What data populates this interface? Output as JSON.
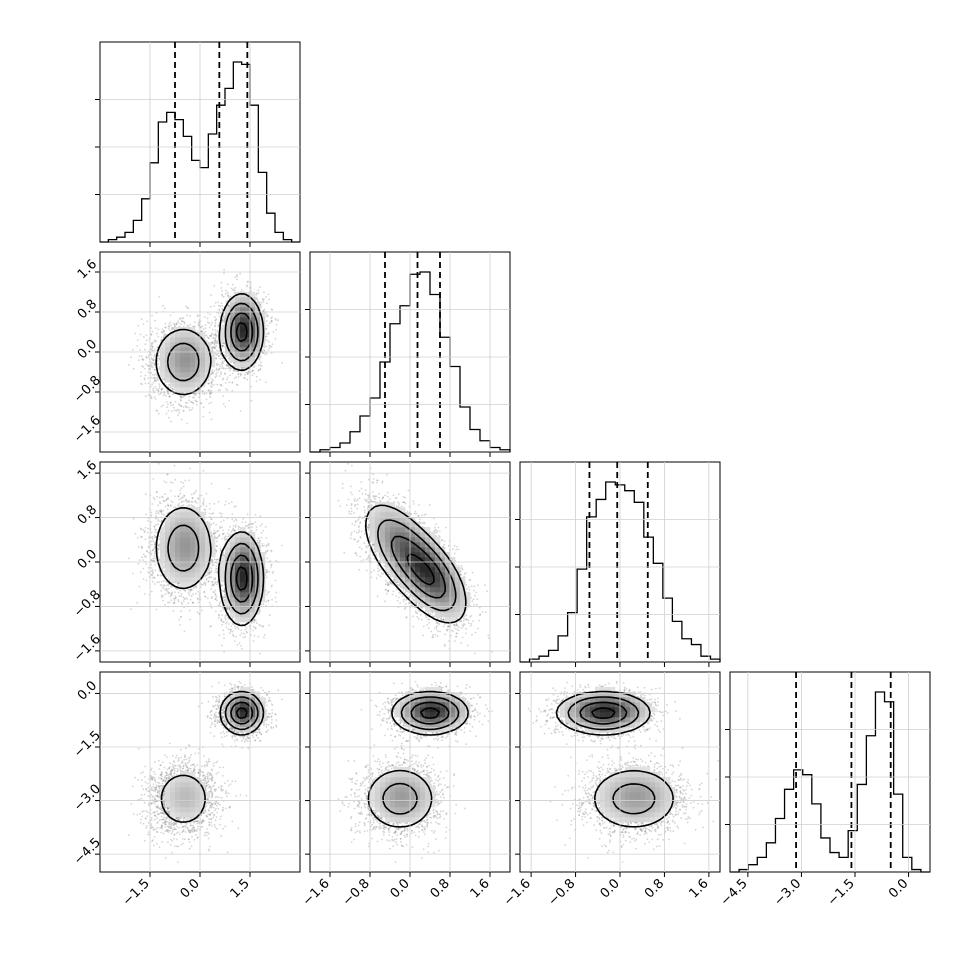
{
  "chart_data": {
    "type": "corner",
    "title": "",
    "n_params": 4,
    "params": [
      {
        "label": "",
        "range": [
          -3.0,
          3.0
        ],
        "ticks": [
          -1.5,
          0.0,
          1.5
        ],
        "tick_labels": [
          "−1.5",
          "0.0",
          "1.5"
        ],
        "quantiles": [
          -0.75,
          0.58,
          1.42
        ]
      },
      {
        "label": "",
        "range": [
          -2.0,
          2.0
        ],
        "ticks": [
          -1.6,
          -0.8,
          0.0,
          0.8,
          1.6
        ],
        "tick_labels": [
          "−1.6",
          "−0.8",
          "0.0",
          "0.8",
          "1.6"
        ],
        "quantiles": [
          -0.5,
          0.15,
          0.6
        ]
      },
      {
        "label": "",
        "range": [
          -1.8,
          1.8
        ],
        "ticks": [
          -1.6,
          -0.8,
          0.0,
          0.8,
          1.6
        ],
        "tick_labels": [
          "−1.6",
          "−0.8",
          "0.0",
          "0.8",
          "1.6"
        ],
        "quantiles": [
          -0.55,
          -0.05,
          0.5
        ]
      },
      {
        "label": "",
        "range": [
          -5.0,
          0.6
        ],
        "ticks": [
          -4.5,
          -3.0,
          -1.5,
          0.0
        ],
        "tick_labels": [
          "−4.5",
          "−3.0",
          "−1.5",
          "0.0"
        ],
        "quantiles": [
          -3.15,
          -1.6,
          -0.5
        ]
      }
    ],
    "mixture": {
      "weights": [
        0.45,
        0.55
      ],
      "components": [
        {
          "mean": [
            -0.5,
            -0.2,
            0.25,
            -2.95
          ],
          "sd": [
            0.5,
            0.4,
            0.45,
            0.5
          ],
          "corr_12": -0.55
        },
        {
          "mean": [
            1.25,
            0.4,
            -0.3,
            -0.55
          ],
          "sd": [
            0.32,
            0.38,
            0.42,
            0.3
          ],
          "corr_12": -0.55
        }
      ]
    },
    "histograms": [
      {
        "bins": [
          -3.0,
          3.0
        ],
        "counts": [
          0,
          1,
          2,
          4,
          9,
          18,
          33,
          50,
          54,
          51,
          44,
          34,
          31,
          45,
          57,
          64,
          75,
          74,
          57,
          29,
          12,
          4,
          1,
          0
        ]
      },
      {
        "bins": [
          -2.0,
          2.0
        ],
        "counts": [
          0,
          1,
          2,
          4,
          9,
          16,
          24,
          40,
          57,
          65,
          79,
          80,
          70,
          51,
          38,
          20,
          10,
          5,
          2,
          1
        ]
      },
      {
        "bins": [
          -1.8,
          1.8
        ],
        "counts": [
          0,
          1,
          2,
          4,
          9,
          17,
          32,
          50,
          56,
          62,
          61,
          59,
          55,
          43,
          34,
          22,
          14,
          8,
          6,
          2,
          1
        ]
      },
      {
        "bins": [
          -5.0,
          0.6
        ],
        "counts": [
          0,
          1,
          3,
          6,
          12,
          22,
          34,
          42,
          40,
          28,
          14,
          8,
          6,
          17,
          36,
          56,
          74,
          70,
          32,
          6,
          1,
          0
        ]
      }
    ],
    "grid": true,
    "contour_levels": [
      0.5,
      1.0,
      1.5,
      2.0
    ]
  }
}
